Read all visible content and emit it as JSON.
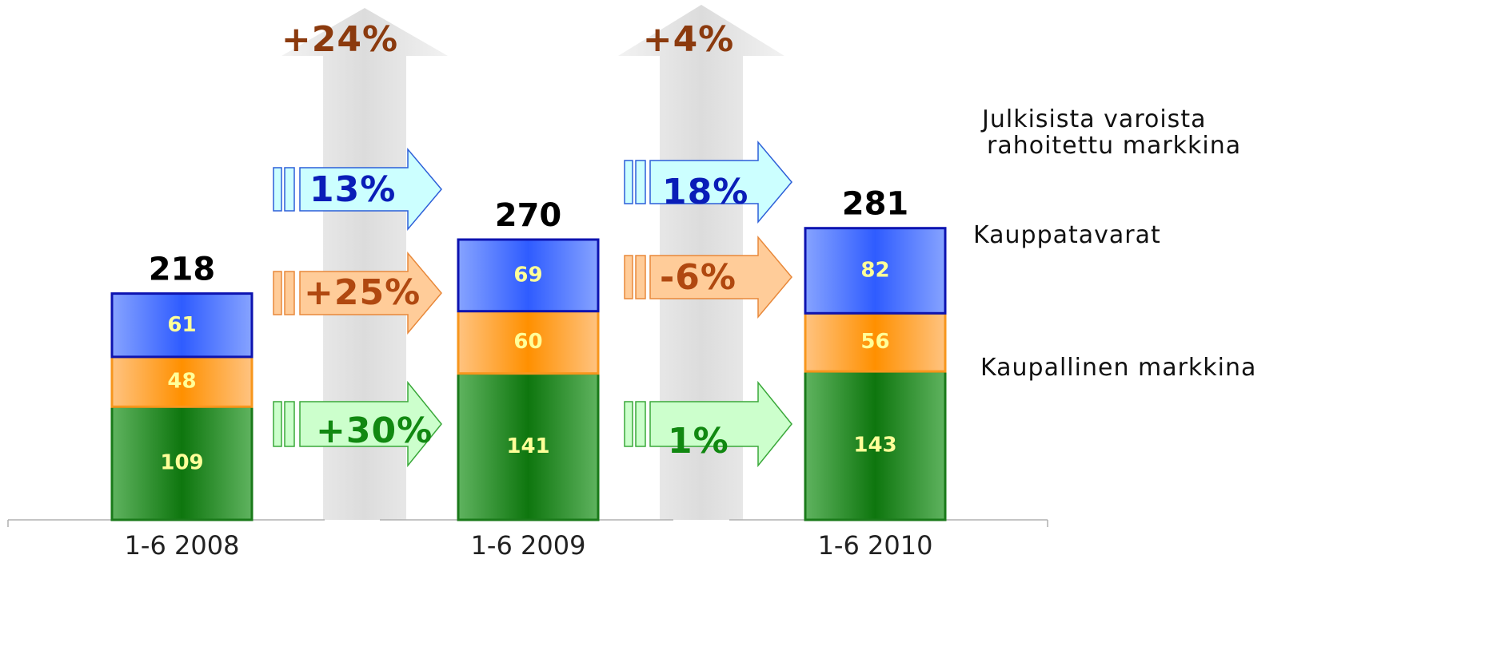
{
  "chart_data": {
    "type": "bar",
    "stacked": true,
    "categories": [
      "1-6 2008",
      "1-6 2009",
      "1-6 2010"
    ],
    "series": [
      {
        "name": "Kaupallinen markkina",
        "values": [
          109,
          141,
          143
        ],
        "color": "#1e8a1e"
      },
      {
        "name": "Kauppatavarat",
        "values": [
          48,
          60,
          56
        ],
        "color": "#ff9a0a"
      },
      {
        "name": "Julkisista varoista rahoitettu markkina",
        "values": [
          61,
          69,
          82
        ],
        "color": "#3f6bff"
      }
    ],
    "totals": [
      218,
      270,
      281
    ],
    "growth": [
      {
        "total": "+24%",
        "per_series": [
          "+30%",
          "+25%",
          "13%"
        ]
      },
      {
        "total": "+4%",
        "per_series": [
          "1%",
          "-6%",
          "18%"
        ]
      }
    ],
    "legend": [
      {
        "lines": [
          "Kaupallinen markkina"
        ]
      },
      {
        "lines": [
          "Kauppatavarat"
        ]
      },
      {
        "lines": [
          "Julkisista varoista",
          "rahoitettu markkina"
        ]
      }
    ],
    "legend_placement": "right",
    "ylim": [
      0,
      300
    ]
  }
}
